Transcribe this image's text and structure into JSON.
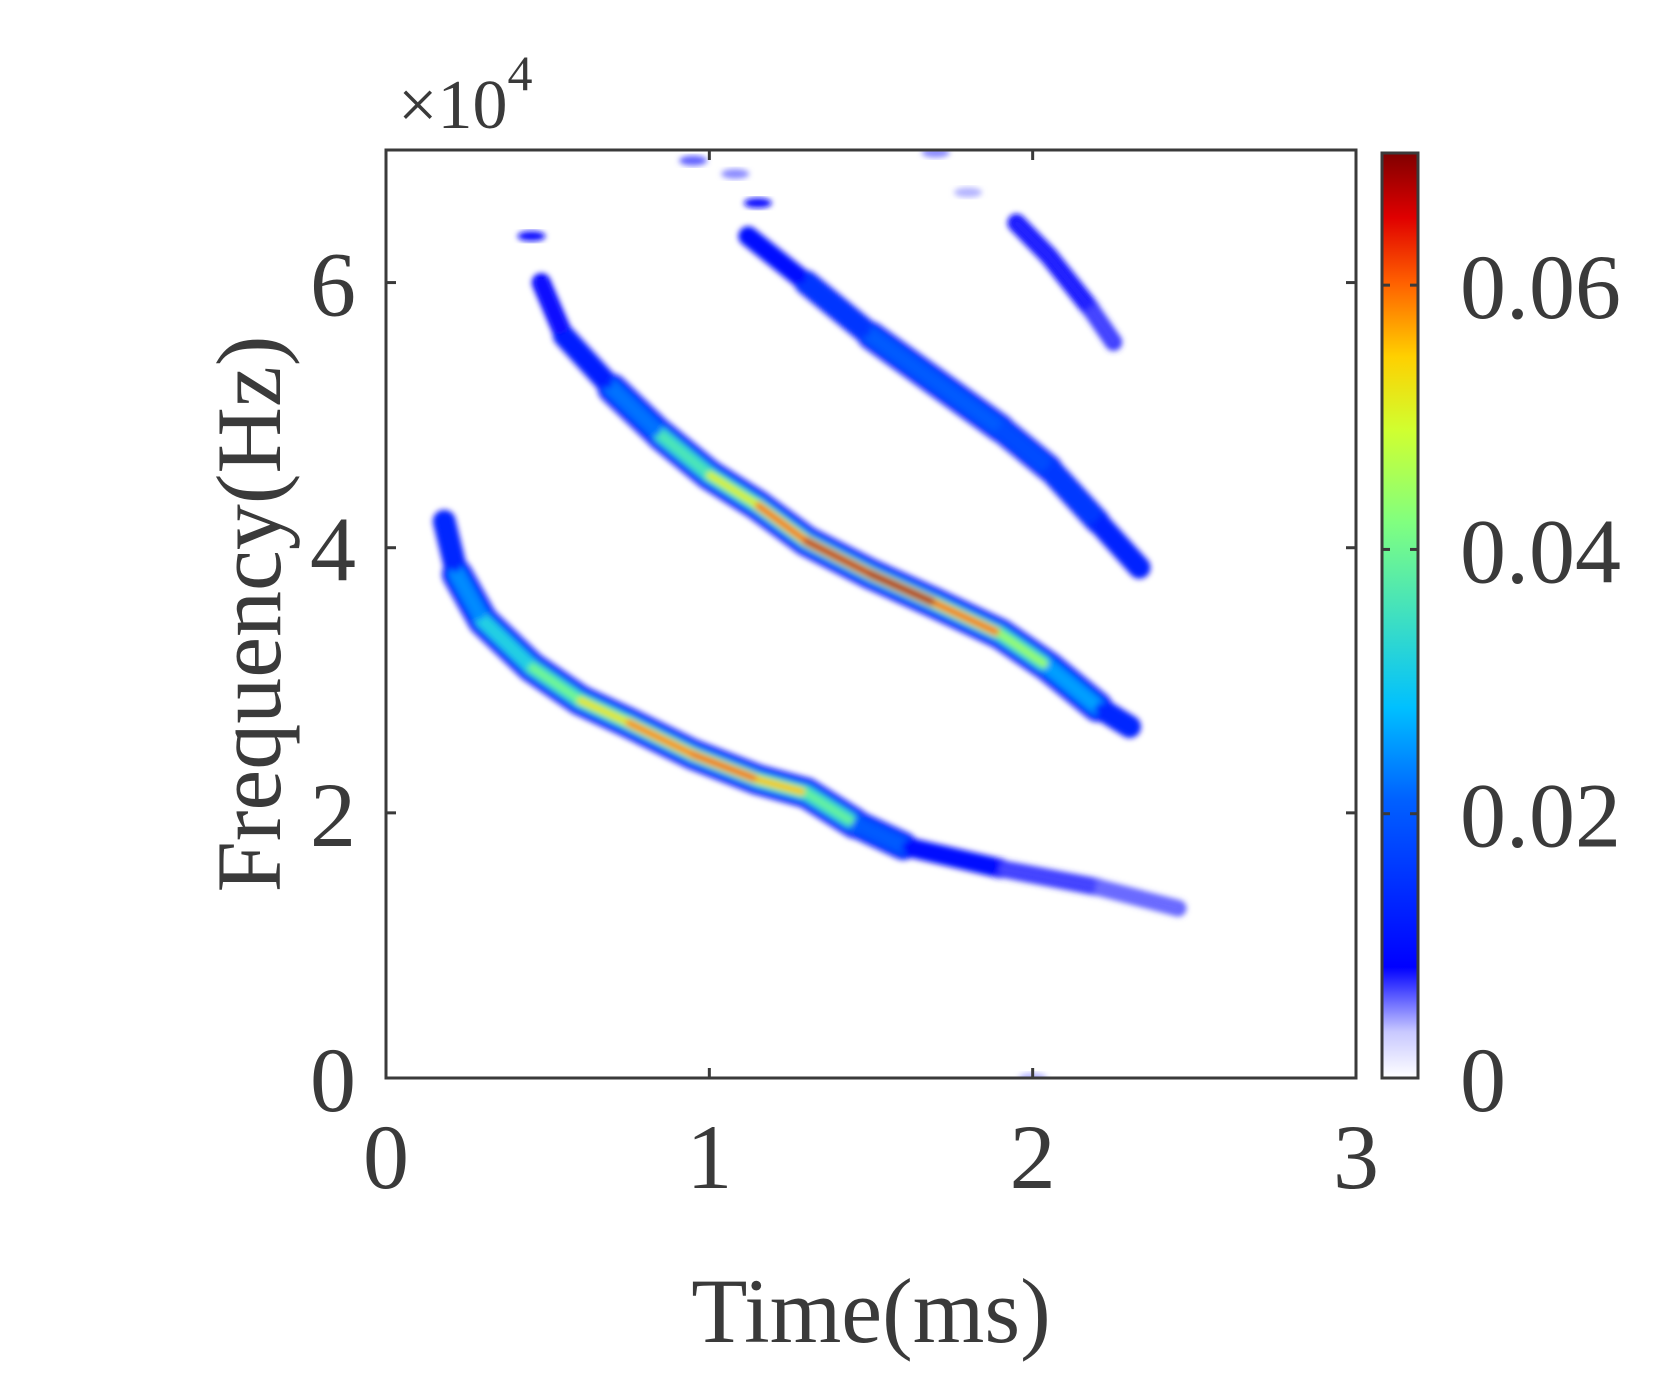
{
  "chart_data": {
    "type": "heatmap",
    "title": "",
    "xlabel": "Time(ms)",
    "ylabel": "Frequency(Hz)",
    "y_exponent_label": "×10",
    "y_exponent_power": "4",
    "xlim": [
      0,
      3
    ],
    "ylim": [
      0,
      70000
    ],
    "xticks": [
      0,
      1,
      2,
      3
    ],
    "xtick_labels": [
      "0",
      "1",
      "2",
      "3"
    ],
    "yticks": [
      0,
      20000,
      40000,
      60000
    ],
    "ytick_labels": [
      "0",
      "2",
      "4",
      "6"
    ],
    "colorbar": {
      "colormap": "jet (white at zero)",
      "range": [
        0,
        0.07
      ],
      "ticks": [
        0,
        0.02,
        0.04,
        0.06
      ],
      "tick_labels": [
        "0",
        "0.02",
        "0.04",
        "0.06"
      ]
    },
    "grid": false,
    "ridges": [
      {
        "id": "ridge-low",
        "points": [
          {
            "t": 0.18,
            "f": 42000,
            "a": 0.008
          },
          {
            "t": 0.22,
            "f": 38000,
            "a": 0.02
          },
          {
            "t": 0.3,
            "f": 34500,
            "a": 0.03
          },
          {
            "t": 0.45,
            "f": 31000,
            "a": 0.035
          },
          {
            "t": 0.6,
            "f": 28500,
            "a": 0.048
          },
          {
            "t": 0.75,
            "f": 26800,
            "a": 0.058
          },
          {
            "t": 0.95,
            "f": 24400,
            "a": 0.062
          },
          {
            "t": 1.15,
            "f": 22500,
            "a": 0.062
          },
          {
            "t": 1.3,
            "f": 21500,
            "a": 0.05
          },
          {
            "t": 1.45,
            "f": 19200,
            "a": 0.03
          },
          {
            "t": 1.6,
            "f": 17500,
            "a": 0.012
          },
          {
            "t": 1.9,
            "f": 15800,
            "a": 0.008
          },
          {
            "t": 2.2,
            "f": 14400,
            "a": 0.006
          },
          {
            "t": 2.45,
            "f": 12800,
            "a": 0.006
          }
        ]
      },
      {
        "id": "ridge-mid",
        "points": [
          {
            "t": 0.48,
            "f": 60000,
            "a": 0.008
          },
          {
            "t": 0.55,
            "f": 56000,
            "a": 0.01
          },
          {
            "t": 0.7,
            "f": 52000,
            "a": 0.016
          },
          {
            "t": 0.85,
            "f": 48500,
            "a": 0.03
          },
          {
            "t": 1.0,
            "f": 45500,
            "a": 0.045
          },
          {
            "t": 1.15,
            "f": 43200,
            "a": 0.058
          },
          {
            "t": 1.3,
            "f": 40500,
            "a": 0.065
          },
          {
            "t": 1.5,
            "f": 38000,
            "a": 0.07
          },
          {
            "t": 1.7,
            "f": 35800,
            "a": 0.068
          },
          {
            "t": 1.9,
            "f": 33500,
            "a": 0.055
          },
          {
            "t": 2.05,
            "f": 31000,
            "a": 0.035
          },
          {
            "t": 2.2,
            "f": 28000,
            "a": 0.018
          },
          {
            "t": 2.3,
            "f": 26500,
            "a": 0.01
          }
        ]
      },
      {
        "id": "ridge-high",
        "points": [
          {
            "t": 1.12,
            "f": 63500,
            "a": 0.008
          },
          {
            "t": 1.3,
            "f": 60000,
            "a": 0.012
          },
          {
            "t": 1.5,
            "f": 56000,
            "a": 0.02
          },
          {
            "t": 1.7,
            "f": 52500,
            "a": 0.022
          },
          {
            "t": 1.9,
            "f": 49000,
            "a": 0.02
          },
          {
            "t": 2.05,
            "f": 46000,
            "a": 0.018
          },
          {
            "t": 2.2,
            "f": 42000,
            "a": 0.015
          },
          {
            "t": 2.33,
            "f": 38500,
            "a": 0.012
          }
        ]
      },
      {
        "id": "ridge-top",
        "points": [
          {
            "t": 1.95,
            "f": 64500,
            "a": 0.008
          },
          {
            "t": 2.05,
            "f": 62000,
            "a": 0.008
          },
          {
            "t": 2.18,
            "f": 58000,
            "a": 0.008
          },
          {
            "t": 2.25,
            "f": 55500,
            "a": 0.006
          }
        ]
      }
    ],
    "blobs": [
      {
        "t": 0.45,
        "f": 63500,
        "a": 0.008
      },
      {
        "t": 1.15,
        "f": 66000,
        "a": 0.008
      },
      {
        "t": 0.95,
        "f": 69200,
        "a": 0.006
      },
      {
        "t": 1.08,
        "f": 68200,
        "a": 0.005
      },
      {
        "t": 1.7,
        "f": 69800,
        "a": 0.005
      },
      {
        "t": 1.8,
        "f": 66800,
        "a": 0.004
      },
      {
        "t": 2.0,
        "f": 0,
        "a": 0.004
      }
    ]
  }
}
